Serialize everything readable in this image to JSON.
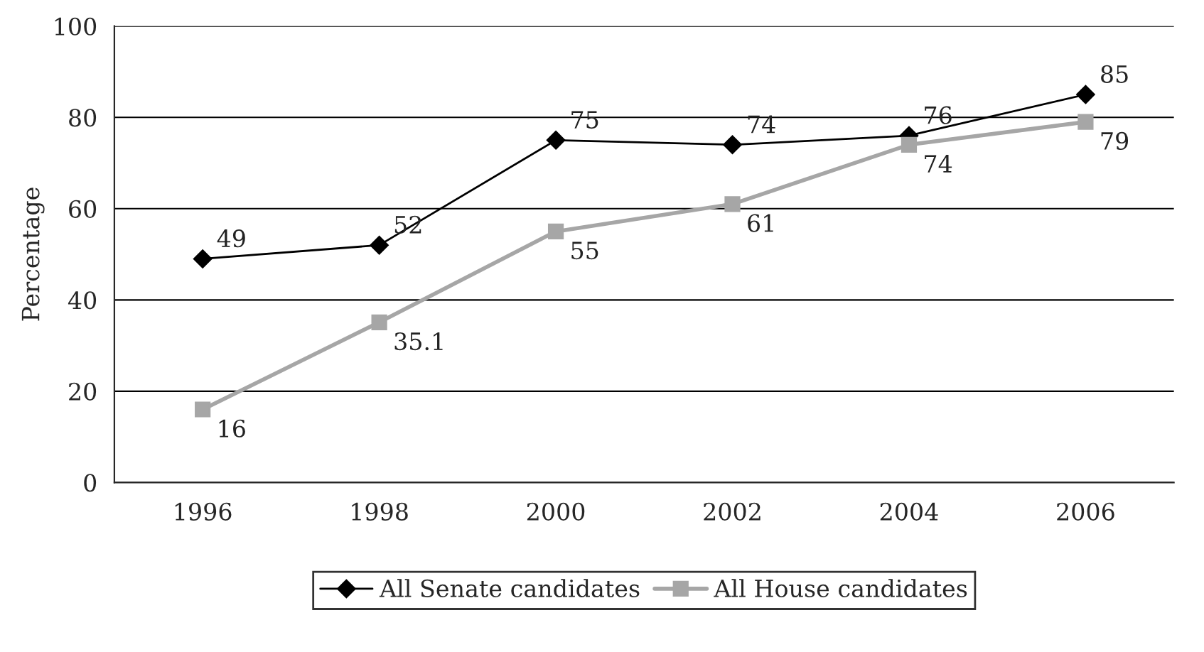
{
  "chart_data": {
    "type": "line",
    "ylabel": "Percentage",
    "categories": [
      "1996",
      "1998",
      "2000",
      "2002",
      "2004",
      "2006"
    ],
    "series": [
      {
        "name": "All Senate candidates",
        "color": "#000000",
        "marker": "diamond",
        "values": [
          49,
          52,
          75,
          74,
          76,
          85
        ]
      },
      {
        "name": "All House candidates",
        "color": "#a6a6a6",
        "marker": "square",
        "values": [
          16,
          35.1,
          55,
          61,
          74,
          79
        ]
      }
    ],
    "ylim": [
      0,
      100
    ],
    "yticks": [
      0,
      20,
      40,
      60,
      80,
      100
    ],
    "grid": "y",
    "legend": "bottom",
    "data_labels": true
  }
}
